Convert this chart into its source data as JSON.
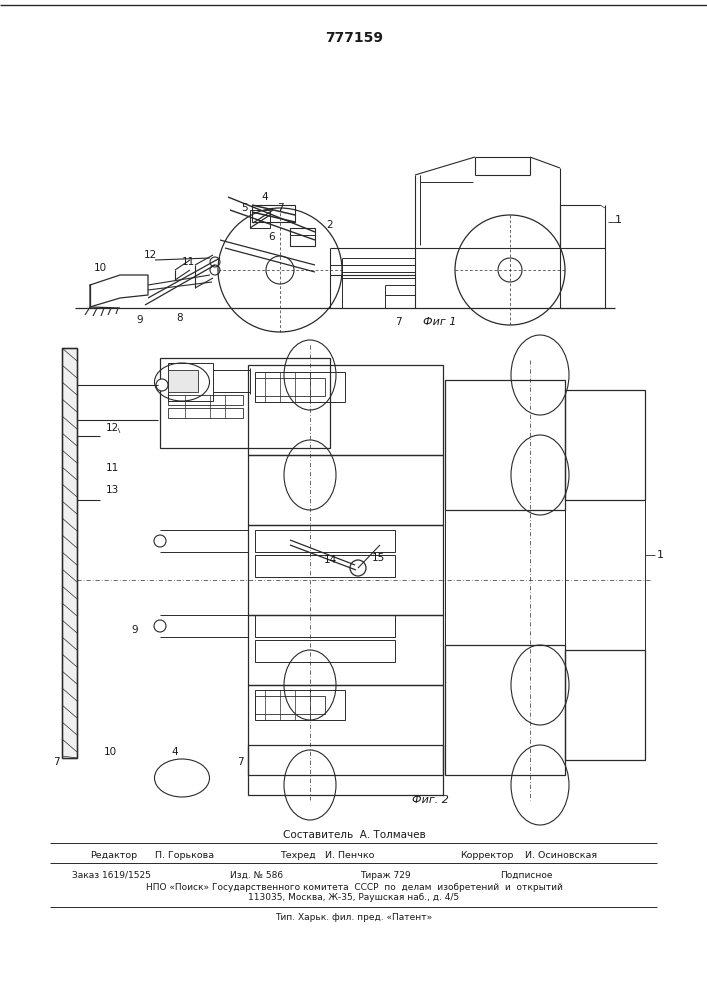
{
  "title": "777159",
  "fig1_label": "Фиг 1",
  "fig2_label": "Фиг. 2",
  "composer_line": "Составитель  А. Толмачев",
  "editor_label": "Редактор",
  "editor_name": "П. Горькова",
  "tech_label": "Техред",
  "tech_name": "И. Пенчко",
  "corrector_label": "Корректор",
  "corrector_name": "И. Осиновская",
  "order_line": "Заказ 1619/1525",
  "izd_line": "Изд. № 586",
  "tirazh_line": "Тираж 729",
  "podp_line": "Подписное",
  "npo_line": "НПО «Поиск» Государственного комитета  СССР  по  делам  изобретений  и  открытий",
  "address_line": "113035, Москва, Ж-35, Раушская наб., д. 4/5",
  "tip_line": "Тип. Харьк. фил. пред. «Патент»",
  "bg_color": "#ffffff",
  "line_color": "#2a2a2a",
  "text_color": "#1a1a1a"
}
